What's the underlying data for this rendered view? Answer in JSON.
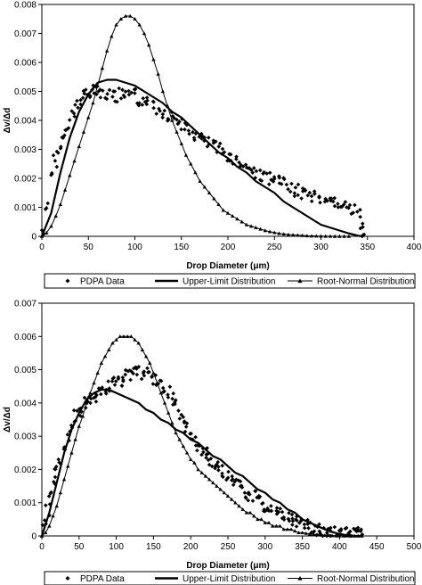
{
  "chart_data": [
    {
      "type": "scatter",
      "xlabel": "Drop Diameter (μm)",
      "ylabel": "Δv/Δd",
      "xlim": [
        0,
        400
      ],
      "ylim": [
        0,
        0.008
      ],
      "xticks": [
        "0",
        "50",
        "100",
        "150",
        "200",
        "250",
        "300",
        "350",
        "400"
      ],
      "yticks": [
        "0",
        "0.001",
        "0.002",
        "0.003",
        "0.004",
        "0.005",
        "0.006",
        "0.007",
        "0.008"
      ],
      "grid": false,
      "legend_position": "bottom",
      "series": [
        {
          "name": "PDPA Data",
          "style": "diamond markers",
          "x": [
            2,
            6,
            10,
            14,
            18,
            22,
            26,
            30,
            34,
            38,
            42,
            46,
            50,
            55,
            60,
            65,
            70,
            75,
            80,
            85,
            90,
            95,
            100,
            105,
            110,
            115,
            120,
            125,
            130,
            135,
            140,
            145,
            150,
            155,
            160,
            165,
            170,
            175,
            180,
            185,
            190,
            195,
            200,
            205,
            210,
            215,
            220,
            225,
            230,
            235,
            240,
            245,
            250,
            255,
            260,
            265,
            270,
            275,
            280,
            285,
            290,
            295,
            300,
            305,
            310,
            315,
            320,
            325,
            330,
            335,
            340,
            343,
            346
          ],
          "y": [
            0.0001,
            0.0011,
            0.002,
            0.0026,
            0.0029,
            0.0033,
            0.0036,
            0.0039,
            0.0042,
            0.0045,
            0.0047,
            0.0049,
            0.005,
            0.005,
            0.0051,
            0.005,
            0.0049,
            0.0049,
            0.0048,
            0.0049,
            0.0048,
            0.0048,
            0.0049,
            0.0047,
            0.0047,
            0.0046,
            0.0046,
            0.0044,
            0.0043,
            0.0042,
            0.0041,
            0.004,
            0.0039,
            0.0037,
            0.0036,
            0.0035,
            0.0034,
            0.0033,
            0.0032,
            0.0031,
            0.003,
            0.0029,
            0.0028,
            0.0027,
            0.0026,
            0.0025,
            0.0024,
            0.0023,
            0.0022,
            0.0021,
            0.0021,
            0.002,
            0.0019,
            0.0019,
            0.0018,
            0.0017,
            0.0016,
            0.0016,
            0.0015,
            0.0015,
            0.0014,
            0.0014,
            0.0013,
            0.0013,
            0.0012,
            0.0012,
            0.0011,
            0.001,
            0.001,
            0.0009,
            0.0008,
            0.0004,
            0.0001
          ]
        },
        {
          "name": "Upper-Limit Distribution",
          "style": "line",
          "x": [
            0,
            10,
            20,
            30,
            40,
            50,
            60,
            70,
            80,
            90,
            100,
            110,
            120,
            130,
            140,
            150,
            160,
            170,
            180,
            190,
            200,
            210,
            220,
            230,
            240,
            250,
            260,
            270,
            280,
            290,
            300,
            310,
            320,
            330,
            340,
            345
          ],
          "y": [
            0,
            0.0008,
            0.0022,
            0.0034,
            0.0043,
            0.0049,
            0.0053,
            0.0054,
            0.0054,
            0.0053,
            0.0052,
            0.005,
            0.0048,
            0.0046,
            0.0043,
            0.0041,
            0.0038,
            0.0035,
            0.0032,
            0.0029,
            0.0027,
            0.0024,
            0.0022,
            0.0019,
            0.0017,
            0.0015,
            0.0012,
            0.001,
            0.0008,
            0.0006,
            0.0004,
            0.0003,
            0.0002,
            0.0001,
            2e-05,
            0
          ]
        },
        {
          "name": "Root-Normal Distribution",
          "style": "line with triangle markers",
          "x": [
            0,
            5,
            10,
            15,
            20,
            25,
            30,
            35,
            40,
            45,
            50,
            55,
            60,
            65,
            70,
            75,
            80,
            85,
            90,
            95,
            100,
            105,
            110,
            115,
            120,
            125,
            130,
            135,
            140,
            145,
            150,
            155,
            160,
            165,
            170,
            175,
            180,
            185,
            190,
            195,
            200,
            205,
            210,
            215,
            220,
            225,
            230,
            235,
            240,
            245,
            250,
            255,
            260,
            265,
            270,
            275,
            280,
            285,
            290,
            295,
            300,
            305,
            310,
            315,
            320,
            325,
            330
          ],
          "y": [
            0,
            0.00012,
            0.00035,
            0.0007,
            0.0011,
            0.0016,
            0.0021,
            0.0026,
            0.0031,
            0.0036,
            0.0041,
            0.0046,
            0.0052,
            0.0058,
            0.0064,
            0.0069,
            0.0073,
            0.0075,
            0.0076,
            0.0076,
            0.0075,
            0.0073,
            0.007,
            0.0066,
            0.0061,
            0.0056,
            0.005,
            0.0045,
            0.004,
            0.0036,
            0.0032,
            0.0028,
            0.0025,
            0.0022,
            0.0019,
            0.0017,
            0.0015,
            0.0013,
            0.0011,
            0.0009,
            0.0008,
            0.0007,
            0.0006,
            0.0005,
            0.0004,
            0.00035,
            0.0003,
            0.00025,
            0.0002,
            0.00016,
            0.00013,
            0.0001,
            8e-05,
            6e-05,
            5e-05,
            4e-05,
            3e-05,
            2e-05,
            1.5e-05,
            1e-05,
            8e-06,
            5e-06,
            3e-06,
            2e-06,
            1e-06,
            0,
            0
          ]
        }
      ]
    },
    {
      "type": "scatter",
      "xlabel": "Drop Diameter (μm)",
      "ylabel": "Δv/Δd",
      "xlim": [
        0,
        500
      ],
      "ylim": [
        0,
        0.007
      ],
      "xticks": [
        "0",
        "50",
        "100",
        "150",
        "200",
        "250",
        "300",
        "350",
        "400",
        "450",
        "500"
      ],
      "yticks": [
        "0",
        "0.001",
        "0.002",
        "0.003",
        "0.004",
        "0.005",
        "0.006",
        "0.007"
      ],
      "grid": false,
      "legend_position": "bottom",
      "series": [
        {
          "name": "PDPA Data",
          "style": "diamond markers",
          "x": [
            4,
            8,
            12,
            16,
            20,
            25,
            30,
            35,
            40,
            45,
            50,
            55,
            60,
            65,
            70,
            75,
            80,
            85,
            90,
            95,
            100,
            105,
            110,
            115,
            120,
            125,
            130,
            135,
            140,
            145,
            150,
            155,
            160,
            165,
            170,
            175,
            180,
            185,
            190,
            195,
            200,
            205,
            210,
            215,
            220,
            225,
            230,
            235,
            240,
            245,
            250,
            255,
            260,
            265,
            270,
            275,
            280,
            285,
            290,
            295,
            300,
            305,
            310,
            315,
            320,
            325,
            330,
            335,
            340,
            345,
            350,
            355,
            360,
            365,
            370,
            375,
            380,
            385,
            390,
            395,
            400,
            405,
            410,
            415,
            420,
            425,
            430
          ],
          "y": [
            0.0003,
            0.0008,
            0.0012,
            0.0016,
            0.0019,
            0.0023,
            0.0027,
            0.003,
            0.0033,
            0.0036,
            0.0038,
            0.0039,
            0.004,
            0.0041,
            0.0042,
            0.0043,
            0.0044,
            0.0044,
            0.0045,
            0.0046,
            0.0047,
            0.0047,
            0.0048,
            0.0048,
            0.0048,
            0.0049,
            0.0049,
            0.0049,
            0.0049,
            0.0048,
            0.0047,
            0.0046,
            0.0045,
            0.0044,
            0.0043,
            0.0041,
            0.0039,
            0.0037,
            0.0035,
            0.0033,
            0.0031,
            0.0029,
            0.0027,
            0.0026,
            0.0025,
            0.0023,
            0.0022,
            0.0021,
            0.002,
            0.0019,
            0.0018,
            0.0017,
            0.0016,
            0.0015,
            0.0014,
            0.0013,
            0.0012,
            0.0012,
            0.0011,
            0.001,
            0.0009,
            0.0009,
            0.0008,
            0.0008,
            0.0007,
            0.0006,
            0.0006,
            0.0005,
            0.0005,
            0.0004,
            0.0004,
            0.0003,
            0.0003,
            0.0002,
            0.0002,
            0.0002,
            0.0001,
            0.0001,
            0.0001,
            0.0001,
            0.0001,
            0.0001,
            0.0001,
            0.0001,
            0.0001,
            0.0001,
            0.0001
          ]
        },
        {
          "name": "Upper-Limit Distribution",
          "style": "line",
          "x": [
            0,
            10,
            20,
            30,
            40,
            50,
            60,
            70,
            80,
            90,
            100,
            110,
            120,
            130,
            140,
            150,
            160,
            170,
            180,
            190,
            200,
            210,
            220,
            230,
            240,
            250,
            260,
            270,
            280,
            290,
            300,
            310,
            320,
            330,
            340,
            350,
            360,
            370,
            380,
            390,
            400,
            410,
            420,
            430
          ],
          "y": [
            0,
            0.0007,
            0.0016,
            0.0025,
            0.0032,
            0.0037,
            0.0041,
            0.0043,
            0.0044,
            0.0044,
            0.0043,
            0.0042,
            0.0041,
            0.004,
            0.0038,
            0.0037,
            0.0035,
            0.0034,
            0.0032,
            0.0031,
            0.0029,
            0.0028,
            0.0026,
            0.0024,
            0.0023,
            0.0021,
            0.0019,
            0.0018,
            0.0016,
            0.0014,
            0.0013,
            0.0011,
            0.001,
            0.0008,
            0.0007,
            0.0005,
            0.0004,
            0.0003,
            0.0002,
            0.00012,
            6e-05,
            2e-05,
            5e-06,
            0
          ]
        },
        {
          "name": "Root-Normal Distribution",
          "style": "line with triangle markers",
          "x": [
            0,
            5,
            10,
            15,
            20,
            25,
            30,
            35,
            40,
            45,
            50,
            55,
            60,
            65,
            70,
            75,
            80,
            85,
            90,
            95,
            100,
            105,
            110,
            115,
            120,
            125,
            130,
            135,
            140,
            145,
            150,
            155,
            160,
            165,
            170,
            175,
            180,
            185,
            190,
            195,
            200,
            205,
            210,
            215,
            220,
            225,
            230,
            235,
            240,
            245,
            250,
            255,
            260,
            265,
            270,
            275,
            280,
            285,
            290,
            295,
            300,
            305,
            310,
            315,
            320,
            325,
            330,
            335,
            340,
            345,
            350,
            355,
            360,
            365,
            370,
            375,
            380,
            385,
            390,
            395,
            400,
            405,
            410,
            415,
            420,
            425,
            430
          ],
          "y": [
            0,
            0.0001,
            0.0003,
            0.0006,
            0.0009,
            0.0013,
            0.0017,
            0.0021,
            0.0025,
            0.0029,
            0.0033,
            0.0036,
            0.004,
            0.0043,
            0.0046,
            0.0049,
            0.0052,
            0.0054,
            0.0056,
            0.0058,
            0.0059,
            0.006,
            0.006,
            0.006,
            0.006,
            0.0059,
            0.0058,
            0.0056,
            0.0054,
            0.0052,
            0.0049,
            0.0046,
            0.0043,
            0.004,
            0.0037,
            0.0034,
            0.0031,
            0.0029,
            0.0027,
            0.0025,
            0.0023,
            0.0022,
            0.002,
            0.0019,
            0.0018,
            0.0017,
            0.0016,
            0.0015,
            0.0014,
            0.0013,
            0.0012,
            0.0011,
            0.001,
            0.0009,
            0.0008,
            0.0007,
            0.0007,
            0.0006,
            0.0005,
            0.0005,
            0.0004,
            0.0004,
            0.0003,
            0.0003,
            0.0003,
            0.0002,
            0.0002,
            0.0002,
            0.00015,
            0.0001,
            0.0001,
            8e-05,
            6e-05,
            5e-05,
            4e-05,
            3e-05,
            2e-05,
            2e-05,
            1e-05,
            1e-05,
            5e-06,
            3e-06,
            2e-06,
            1e-06,
            0,
            0,
            0
          ]
        }
      ]
    }
  ]
}
